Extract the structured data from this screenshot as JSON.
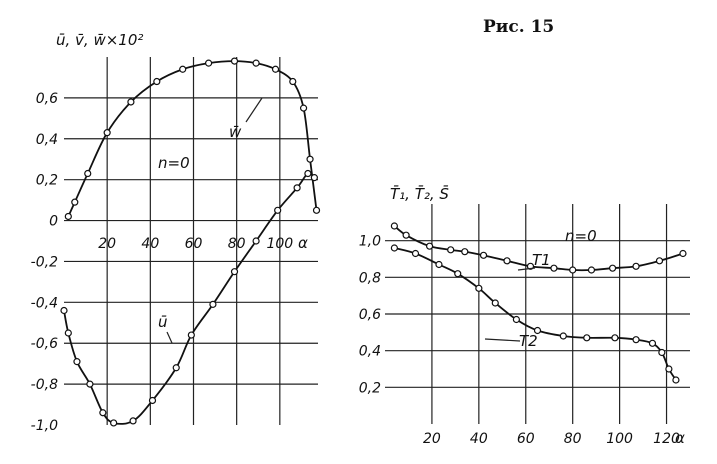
{
  "figure_caption": "Рис. 15",
  "chart_data": [
    {
      "type": "line",
      "ylabel": "ū, v̄, w̄×10²",
      "xlabel": "α",
      "annotation": "n=0",
      "xlim": [
        0,
        120
      ],
      "ylim": [
        -1.0,
        0.8
      ],
      "x_ticks": [
        "20",
        "40",
        "60",
        "80",
        "100"
      ],
      "y_ticks": [
        "0,6",
        "0,4",
        "0,2",
        "0",
        "-0,2",
        "-0,4",
        "-0,6",
        "-0,8",
        "-1,0"
      ],
      "series": [
        {
          "name": "w̄",
          "x": [
            2,
            5,
            11,
            20,
            31,
            43,
            55,
            67,
            79,
            89,
            98,
            106,
            111,
            114,
            117
          ],
          "y": [
            0.02,
            0.09,
            0.23,
            0.43,
            0.58,
            0.68,
            0.74,
            0.77,
            0.78,
            0.77,
            0.74,
            0.68,
            0.55,
            0.3,
            0.05
          ]
        },
        {
          "name": "ū",
          "x": [
            0,
            2,
            6,
            12,
            18,
            23,
            32,
            41,
            52,
            59,
            69,
            79,
            89,
            99,
            108,
            113,
            116
          ],
          "y": [
            -0.44,
            -0.55,
            -0.69,
            -0.8,
            -0.94,
            -0.99,
            -0.98,
            -0.88,
            -0.72,
            -0.56,
            -0.41,
            -0.25,
            -0.1,
            0.05,
            0.16,
            0.23,
            0.21
          ]
        }
      ]
    },
    {
      "type": "line",
      "ylabel": "T̄₁, T̄₂, S̄",
      "xlabel": "α",
      "annotation": "n=0",
      "xlim": [
        0,
        130
      ],
      "ylim": [
        0,
        1.2
      ],
      "x_ticks": [
        "20",
        "40",
        "60",
        "80",
        "100",
        "120"
      ],
      "y_ticks": [
        "1,0",
        "0,8",
        "0,6",
        "0,4",
        "0,2"
      ],
      "series": [
        {
          "name": "T1",
          "x": [
            4,
            9,
            19,
            28,
            34,
            42,
            52,
            62,
            72,
            80,
            88,
            97,
            107,
            117,
            127
          ],
          "y": [
            1.08,
            1.03,
            0.97,
            0.95,
            0.94,
            0.92,
            0.89,
            0.86,
            0.85,
            0.84,
            0.84,
            0.85,
            0.86,
            0.89,
            0.93
          ]
        },
        {
          "name": "T2",
          "x": [
            4,
            13,
            23,
            31,
            40,
            47,
            56,
            65,
            76,
            86,
            98,
            107,
            114,
            118,
            121,
            124
          ],
          "y": [
            0.96,
            0.93,
            0.87,
            0.82,
            0.74,
            0.66,
            0.57,
            0.51,
            0.48,
            0.47,
            0.47,
            0.46,
            0.44,
            0.39,
            0.3,
            0.24
          ]
        }
      ]
    }
  ]
}
